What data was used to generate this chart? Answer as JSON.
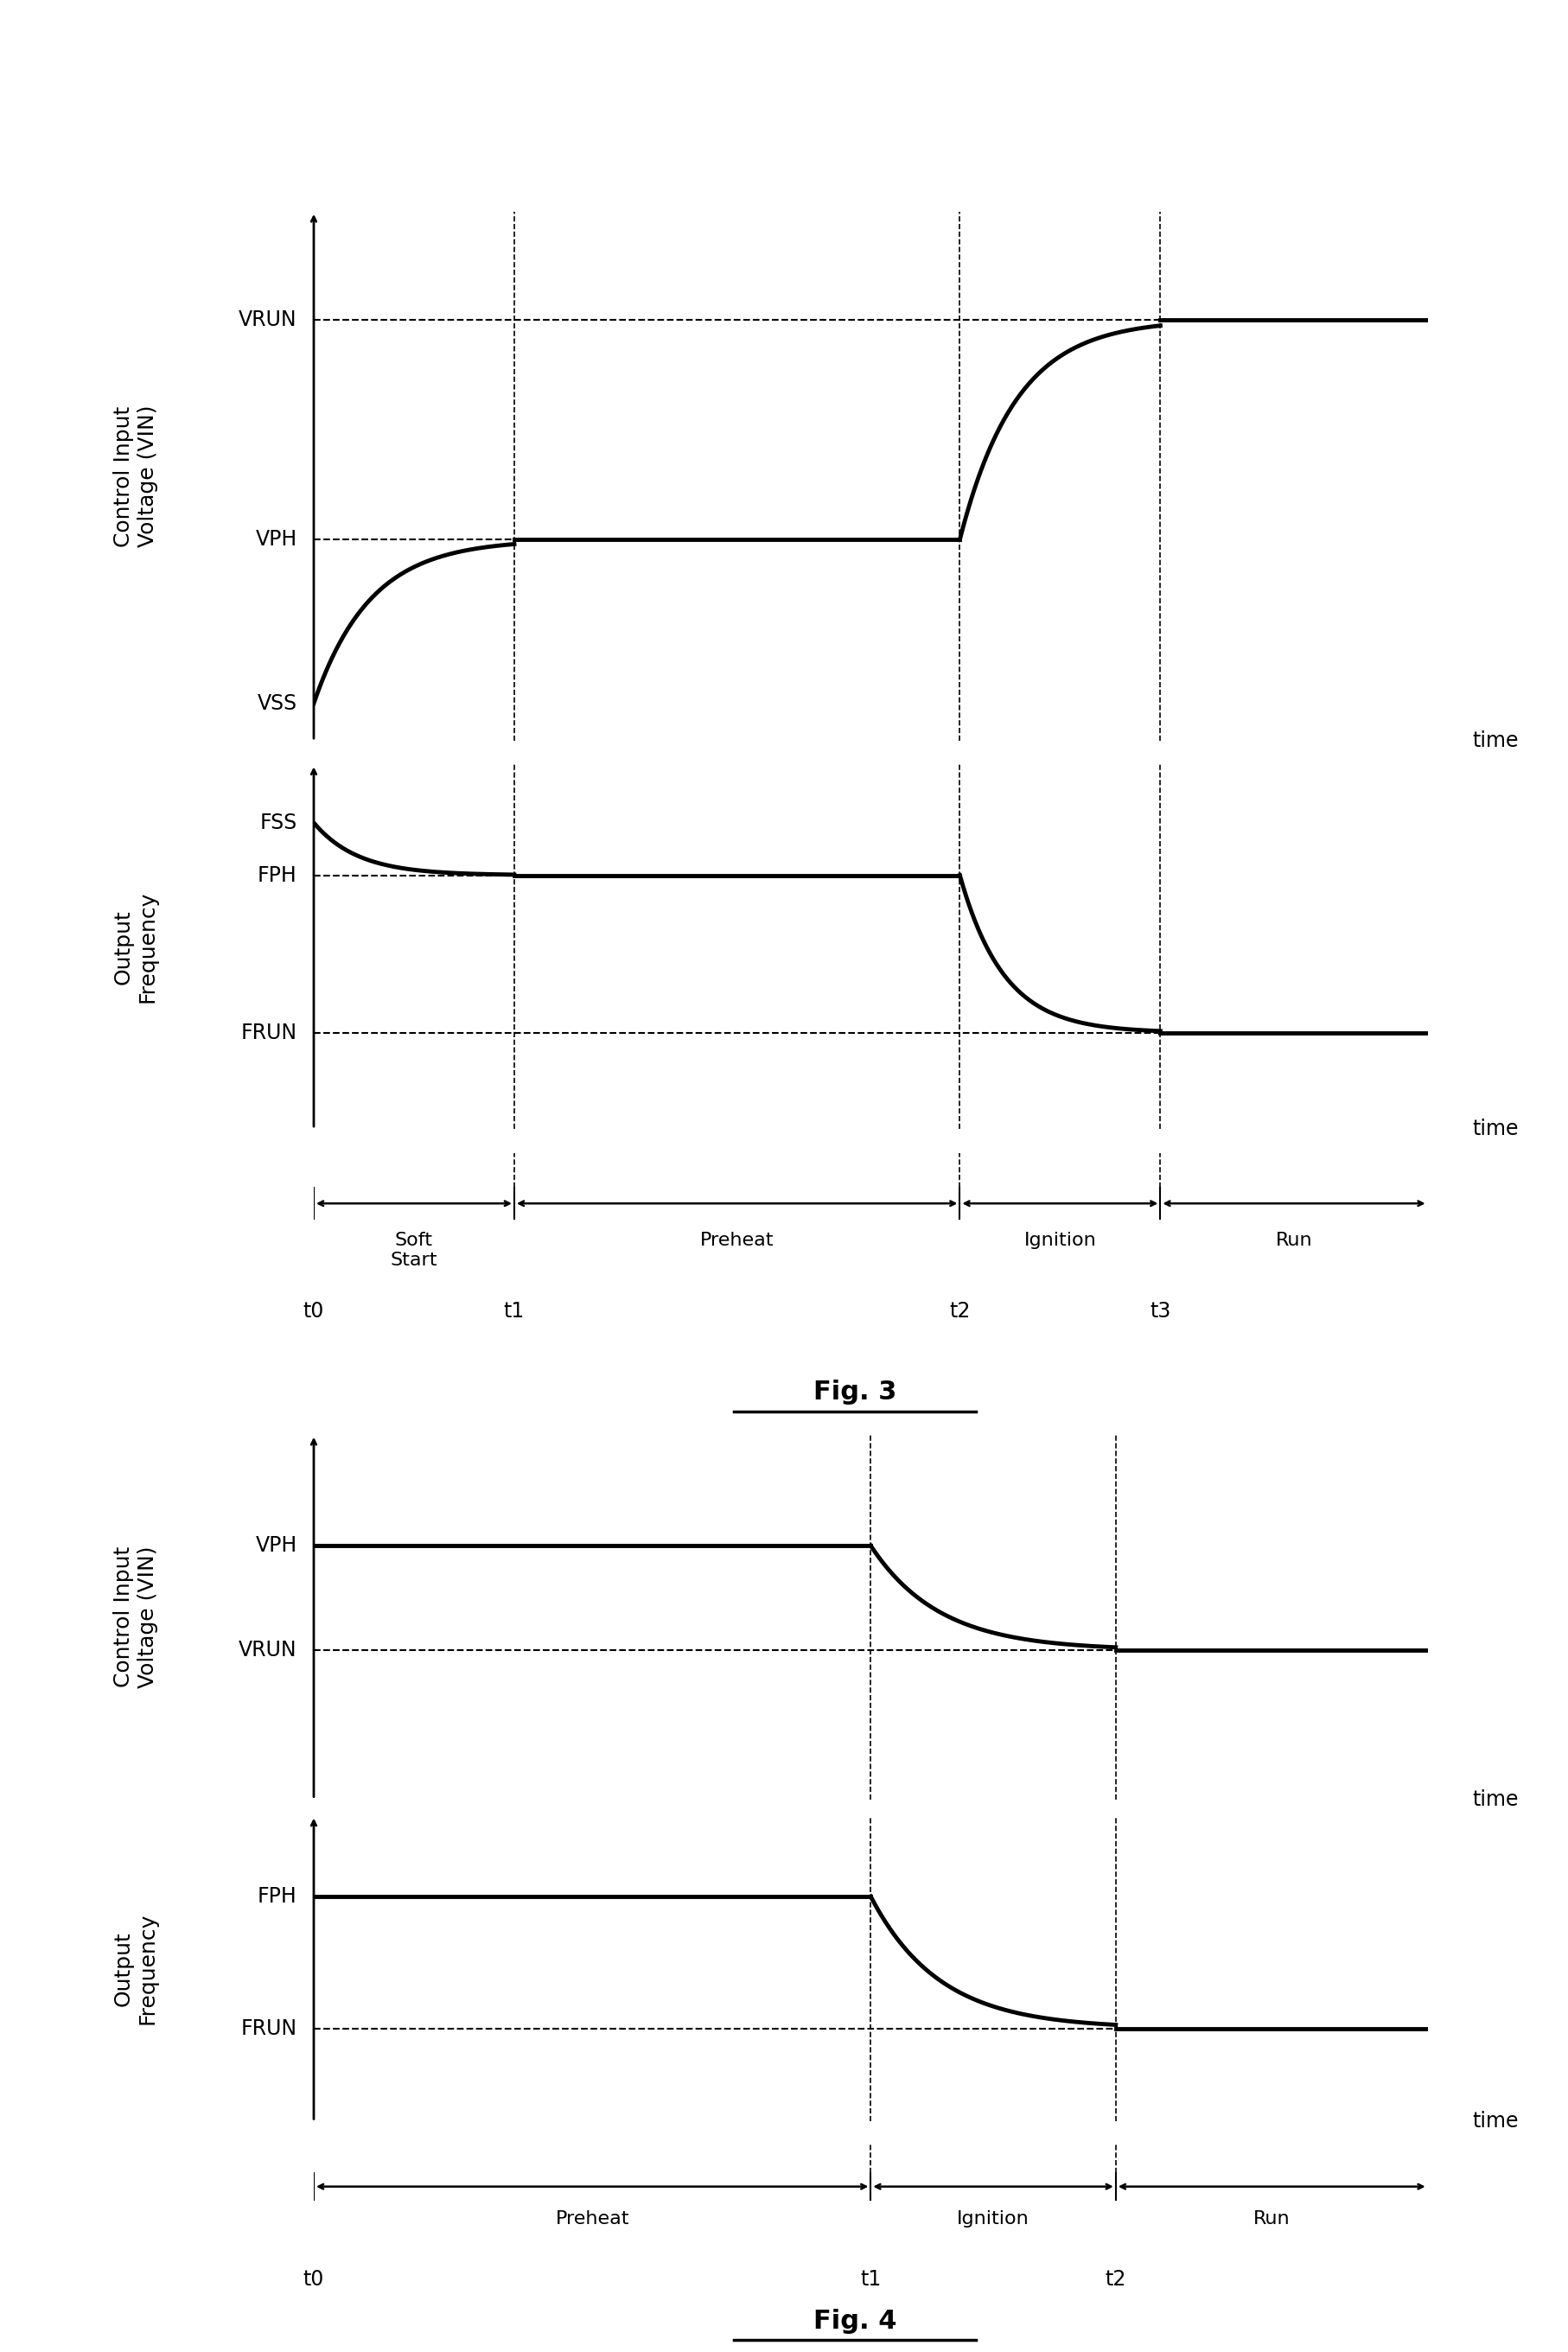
{
  "fig3": {
    "title": "Fig. 3",
    "voltage_ylabel": "Control Input\nVoltage (VIN)",
    "freq_ylabel": "Output\nFrequency",
    "time_label": "time",
    "vlevels": {
      "VSS": 0.0,
      "VPH": 0.35,
      "VRUN": 0.82
    },
    "flevels": {
      "FSS": 0.9,
      "FPH": 0.72,
      "FRUN": 0.18
    },
    "t_points": {
      "t0": 0.0,
      "t1": 0.18,
      "t2": 0.58,
      "t3": 0.76
    },
    "phases": [
      "Soft\nStart",
      "Preheat",
      "Ignition",
      "Run"
    ],
    "time_labels": [
      "t0",
      "t1",
      "t2",
      "t3"
    ],
    "line_color": "#000000",
    "dashed_color": "#000000",
    "lw": 3.5
  },
  "fig4": {
    "title": "Fig. 4",
    "voltage_ylabel": "Control Input\nVoltage (VIN)",
    "freq_ylabel": "Output\nFrequency",
    "time_label": "time",
    "vlevels": {
      "VPH": 0.65,
      "VRUN": 0.32
    },
    "flevels": {
      "FPH": 0.72,
      "FRUN": 0.18
    },
    "t_points": {
      "t0": 0.0,
      "t1": 0.5,
      "t2": 0.72
    },
    "phases": [
      "Preheat",
      "Ignition",
      "Run"
    ],
    "time_labels": [
      "t0",
      "t1",
      "t2"
    ],
    "line_color": "#000000",
    "dashed_color": "#000000",
    "lw": 3.5
  },
  "background_color": "#ffffff",
  "text_color": "#000000",
  "fontsize_label": 18,
  "fontsize_tick": 17,
  "fontsize_title": 22,
  "fontsize_phase": 16,
  "fontsize_timelabel": 17
}
